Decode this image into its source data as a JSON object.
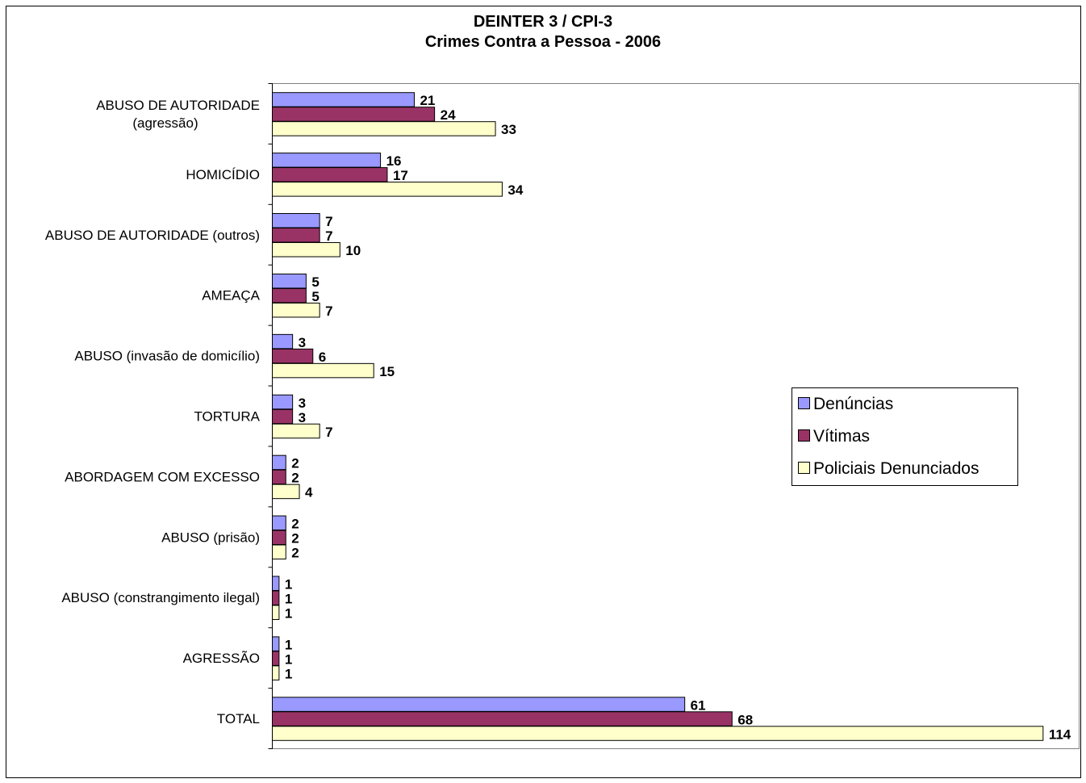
{
  "chart_data": {
    "type": "bar",
    "orientation": "horizontal",
    "title": [
      "DEINTER 3 / CPI-3",
      "Crimes Contra a Pessoa - 2006"
    ],
    "categories": [
      [
        "ABUSO DE AUTORIDADE",
        "(agressão)"
      ],
      [
        "HOMICÍDIO"
      ],
      [
        "ABUSO DE AUTORIDADE (outros)"
      ],
      [
        "AMEAÇA"
      ],
      [
        "ABUSO (invasão de domicílio)"
      ],
      [
        "TORTURA"
      ],
      [
        "ABORDAGEM COM EXCESSO"
      ],
      [
        "ABUSO (prisão)"
      ],
      [
        "ABUSO (constrangimento ilegal)"
      ],
      [
        "AGRESSÃO"
      ],
      [
        "TOTAL"
      ]
    ],
    "series": [
      {
        "name": "Denúncias",
        "color": "#9999ff",
        "values": [
          21,
          16,
          7,
          5,
          3,
          3,
          2,
          2,
          1,
          1,
          61
        ]
      },
      {
        "name": "Vítimas",
        "color": "#993366",
        "values": [
          24,
          17,
          7,
          5,
          6,
          3,
          2,
          2,
          1,
          1,
          68
        ]
      },
      {
        "name": "Policiais Denunciados",
        "color": "#ffffcc",
        "values": [
          33,
          34,
          10,
          7,
          15,
          7,
          4,
          2,
          1,
          1,
          114
        ]
      }
    ],
    "xlim": [
      0,
      120
    ],
    "grid": false,
    "legend_position": "right"
  }
}
